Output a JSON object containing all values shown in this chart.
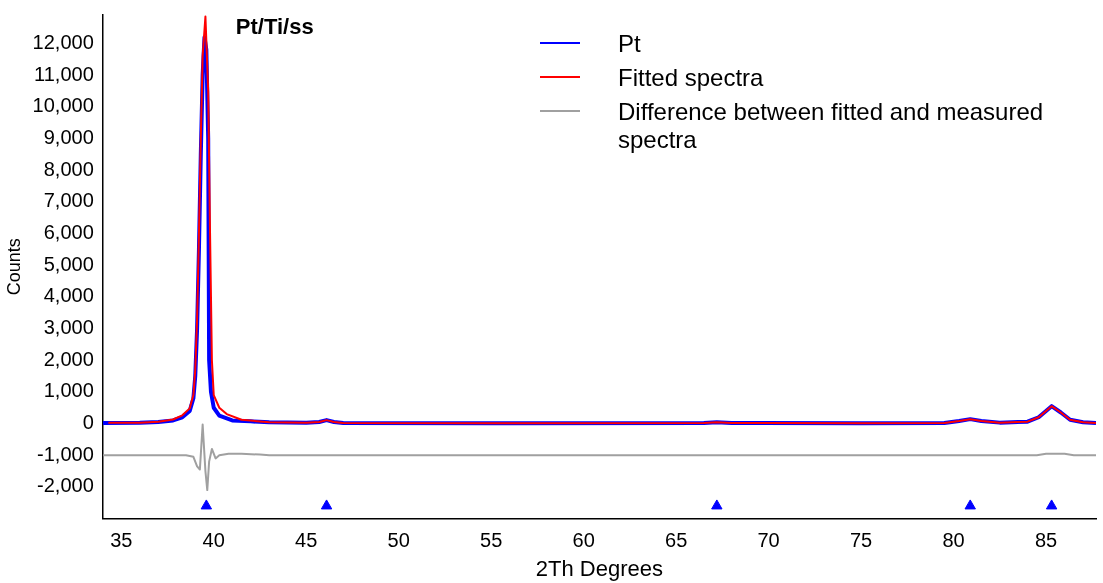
{
  "chart_data": {
    "type": "line",
    "title": "Pt/Ti/ss",
    "xlabel": "2Th Degrees",
    "ylabel": "Counts",
    "xlim": [
      34,
      87.7
    ],
    "xticks": [
      35,
      40,
      45,
      50,
      55,
      60,
      65,
      70,
      75,
      80,
      85
    ],
    "ylim": [
      -3000,
      12900
    ],
    "yticks": [
      {
        "value": -2000,
        "label": "-2,000"
      },
      {
        "value": -1000,
        "label": "-1,000"
      },
      0,
      {
        "value": 1000,
        "label": "1,000"
      },
      {
        "value": 2000,
        "label": "2,000"
      },
      {
        "value": 3000,
        "label": "3,000"
      },
      {
        "value": 4000,
        "label": "4,000"
      },
      {
        "value": 5000,
        "label": "5,000"
      },
      {
        "value": 6000,
        "label": "6,000"
      },
      {
        "value": 7000,
        "label": "7,000"
      },
      {
        "value": 8000,
        "label": "8,000"
      },
      {
        "value": 9000,
        "label": "9,000"
      },
      {
        "value": 10000,
        "label": "10,000"
      },
      {
        "value": 11000,
        "label": "11,000"
      },
      {
        "value": 12000,
        "label": "12,000"
      }
    ],
    "grid": false,
    "legend": "top right",
    "line_style": "solid",
    "series": [
      {
        "name": "Pt",
        "color": "#0000ff",
        "x": [
          34,
          36,
          37,
          37.8,
          38.3,
          38.7,
          38.9,
          39.0,
          39.1,
          39.2,
          39.3,
          39.4,
          39.5,
          39.6,
          39.7,
          39.75,
          39.85,
          40.0,
          40.3,
          41,
          42,
          43,
          45,
          45.7,
          46.1,
          46.5,
          47,
          55,
          66.5,
          67.2,
          68,
          75,
          79.5,
          80.3,
          80.9,
          81.5,
          82.5,
          84,
          84.6,
          85.3,
          85.8,
          86.3,
          87,
          87.7
        ],
        "values": [
          20,
          30,
          50,
          100,
          200,
          400,
          800,
          1500,
          3000,
          5500,
          8500,
          11000,
          12200,
          11800,
          9000,
          2000,
          1000,
          500,
          250,
          100,
          70,
          40,
          30,
          50,
          110,
          50,
          20,
          10,
          20,
          40,
          20,
          10,
          20,
          80,
          140,
          80,
          30,
          60,
          200,
          550,
          350,
          120,
          40,
          20
        ]
      },
      {
        "name": "Fitted spectra",
        "color": "#ff0000",
        "x": [
          34.3,
          36,
          37,
          37.8,
          38.3,
          38.7,
          38.9,
          39.0,
          39.1,
          39.2,
          39.3,
          39.4,
          39.55,
          39.7,
          39.8,
          39.9,
          40.0,
          40.3,
          40.7,
          41.5,
          43,
          45,
          45.7,
          46.1,
          46.5,
          47,
          55,
          66.5,
          67.2,
          68,
          75,
          79.5,
          80.3,
          80.9,
          81.5,
          82.5,
          84,
          84.6,
          85.3,
          85.8,
          86.3,
          87,
          87.7
        ],
        "values": [
          30,
          30,
          60,
          130,
          260,
          480,
          900,
          1700,
          3300,
          6000,
          9000,
          11600,
          12850,
          10500,
          6000,
          2000,
          900,
          500,
          300,
          120,
          40,
          30,
          50,
          110,
          50,
          20,
          10,
          20,
          40,
          20,
          10,
          20,
          80,
          140,
          80,
          30,
          60,
          200,
          550,
          350,
          120,
          40,
          20
        ]
      },
      {
        "name": "Difference between fitted and measured spectra",
        "color": "#a0a0a0",
        "x": [
          34,
          38.5,
          38.9,
          39.1,
          39.25,
          39.4,
          39.55,
          39.65,
          39.75,
          39.9,
          40.1,
          40.3,
          40.8,
          41.5,
          42.5,
          43,
          84.5,
          85,
          85.5,
          86,
          86.5,
          87.7
        ],
        "values": [
          -1000,
          -1000,
          -1050,
          -1350,
          -1450,
          -30,
          -1500,
          -2100,
          -1200,
          -800,
          -1100,
          -1000,
          -950,
          -950,
          -980,
          -1000,
          -1000,
          -950,
          -950,
          -950,
          -1000,
          -1000
        ]
      },
      {
        "type": "scatter",
        "marker": "triangle",
        "color": "#0000ff",
        "x": [
          39.6,
          46.1,
          67.2,
          80.9,
          85.3
        ],
        "values": [
          -2600,
          -2600,
          -2600,
          -2600,
          -2600
        ]
      }
    ]
  }
}
